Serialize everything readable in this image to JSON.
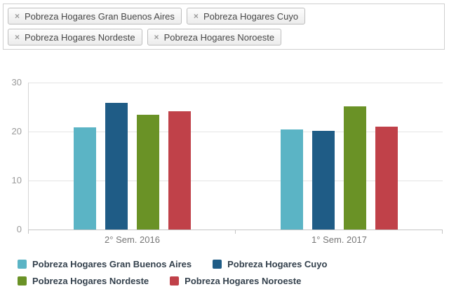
{
  "filters": {
    "remove_icon": "×",
    "items": [
      {
        "label": "Pobreza Hogares Gran Buenos Aires"
      },
      {
        "label": "Pobreza Hogares Cuyo"
      },
      {
        "label": "Pobreza Hogares Nordeste"
      },
      {
        "label": "Pobreza Hogares Noroeste"
      }
    ]
  },
  "chart_data": {
    "type": "bar",
    "title": "",
    "xlabel": "",
    "ylabel": "",
    "categories": [
      "2° Sem. 2016",
      "1° Sem. 2017"
    ],
    "series": [
      {
        "name": "Pobreza Hogares Gran Buenos Aires",
        "color": "#5bb4c5",
        "values": [
          20.8,
          20.5
        ]
      },
      {
        "name": "Pobreza Hogares Cuyo",
        "color": "#1f5c86",
        "values": [
          25.9,
          20.1
        ]
      },
      {
        "name": "Pobreza Hogares Nordeste",
        "color": "#6a9226",
        "values": [
          23.4,
          25.2
        ]
      },
      {
        "name": "Pobreza Hogares Noroeste",
        "color": "#c04149",
        "values": [
          24.2,
          21.0
        ]
      }
    ],
    "ylim": [
      0,
      30
    ],
    "yticks": [
      0,
      10,
      20,
      30
    ],
    "grid": true,
    "legend_position": "bottom"
  }
}
